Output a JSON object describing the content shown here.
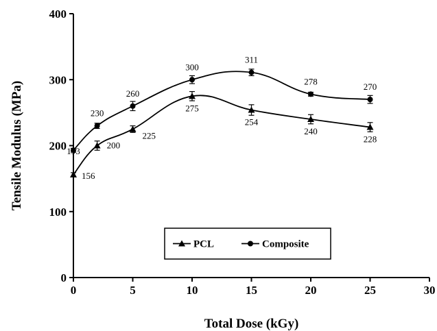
{
  "chart_data": {
    "type": "line",
    "title": "",
    "xlabel": "Total Dose (kGy)",
    "ylabel": "Tensile Modulus (MPa)",
    "xlim": [
      0,
      30
    ],
    "ylim": [
      0,
      400
    ],
    "xticks": [
      0,
      5,
      10,
      15,
      20,
      25,
      30
    ],
    "yticks": [
      0,
      100,
      200,
      300,
      400
    ],
    "x": [
      0,
      2,
      5,
      10,
      15,
      20,
      25
    ],
    "grid": false,
    "legend_position": "bottom-center",
    "series": [
      {
        "name": "PCL",
        "marker": "triangle",
        "values": [
          156,
          200,
          225,
          275,
          254,
          240,
          228
        ],
        "labels": [
          "156",
          "200",
          "225",
          "275",
          "254",
          "240",
          "228"
        ],
        "errors": [
          3,
          7,
          5,
          7,
          8,
          7,
          7
        ]
      },
      {
        "name": "Composite",
        "marker": "circle",
        "values": [
          193,
          230,
          260,
          300,
          311,
          278,
          270
        ],
        "labels": [
          "193",
          "230",
          "260",
          "300",
          "311",
          "278",
          "270"
        ],
        "errors": [
          3,
          4,
          7,
          6,
          5,
          3,
          6
        ]
      }
    ],
    "colors": {
      "line": "#000000",
      "background": "#ffffff"
    }
  }
}
